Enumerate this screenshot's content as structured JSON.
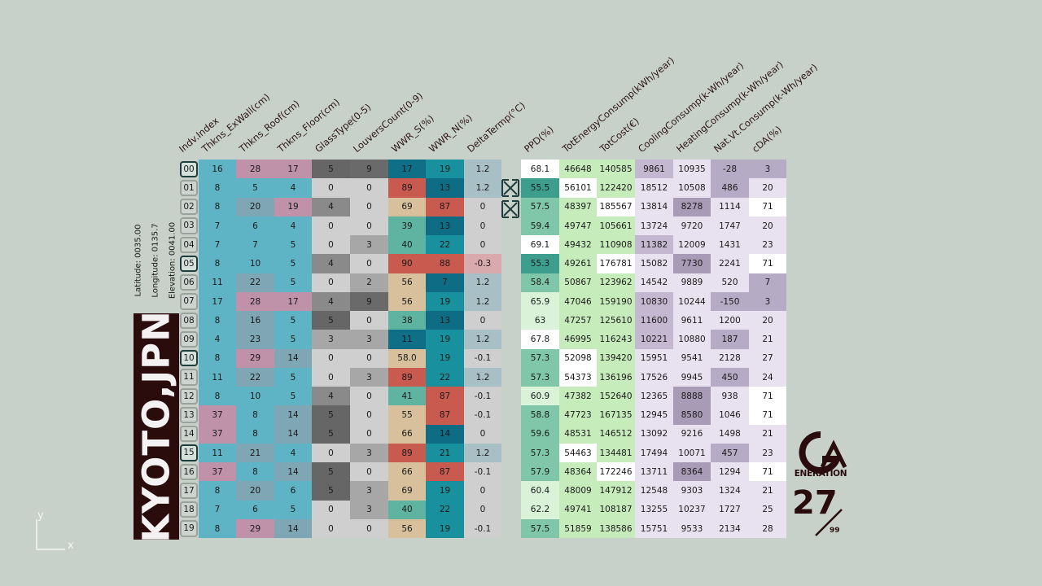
{
  "location": {
    "title": "KYOTO,JPN",
    "latitude": "Latitude:    0035.00",
    "longitude": "Longitude: 0135.7",
    "elevation": "Elevation: 0041.00"
  },
  "generation": {
    "logo_text": "ENERATION",
    "number": "27",
    "total": "99"
  },
  "axis": {
    "x": "x",
    "y": "y"
  },
  "colors": {
    "background": "#c8d1c9",
    "title_block": "#2a0c0c",
    "ExWall": [
      "#5eb3c4",
      "#c092a9"
    ],
    "Roof": [
      "#5eb3c4",
      "#7ea6b4",
      "#c092a9"
    ],
    "Glass": [
      "#cfcfcf",
      "#a7a7a7",
      "#8a8a8a",
      "#666666"
    ],
    "Louvers": [
      "#cfcfcf",
      "#a7a7a7",
      "#6a6a6a"
    ],
    "WWR_S": [
      "#0f6f87",
      "#5fb3a1",
      "#d8c09c",
      "#c85a4f"
    ],
    "WWR_N": [
      "#0e6d85",
      "#18909d",
      "#c85a4f"
    ],
    "Delta": [
      "#a7bfc5",
      "#cfcfcf",
      "#d8a9ad"
    ],
    "PPD": [
      "#3d9e8d",
      "#7fc7a8",
      "#d9f2d8",
      "#ffffff"
    ],
    "Energy": [
      "#c6ecbc",
      "#ffffff"
    ],
    "Cost": [
      "#c6ecbc",
      "#ffffff"
    ],
    "Cooling": [
      "#c4b8d0",
      "#e8e2f0"
    ],
    "Heating": [
      "#a79bb5",
      "#e8e2f0"
    ],
    "NatVt": [
      "#b6abc4",
      "#e8e2f0"
    ],
    "cDA": [
      "#b6abc4",
      "#ffffff"
    ]
  },
  "chart_data": {
    "type": "table",
    "columns": [
      "Indv.Index",
      "Thkns_ExWall(cm)",
      "Thkns_Roof(cm)",
      "Thkns_Floor(cm)",
      "GlassType(0-5)",
      "LouversCount(0-9)",
      "WWR_S(%)",
      "WWR_N(%)",
      "DeltaTermp(°C)",
      "PPD(%)",
      "TotEnergyConsump(kWh/year)",
      "TotCost(€)",
      "CoolingConsump(k-Wh/year)",
      "HeatingConsump(k-Wh/year)",
      "Nat.Vt.Consump(k-Wh/year)",
      "cDA(%)"
    ],
    "highlighted": [
      "00",
      "05",
      "10",
      "15"
    ],
    "rows": [
      [
        "00",
        "16",
        "28",
        "17",
        "5",
        "9",
        "17",
        "19",
        "1.2",
        "68.1",
        "46648",
        "140585",
        "9861",
        "10935",
        "-28",
        "3"
      ],
      [
        "01",
        "8",
        "5",
        "4",
        "0",
        "0",
        "89",
        "13",
        "1.2",
        "55.5",
        "56101",
        "122420",
        "18512",
        "10508",
        "486",
        "20"
      ],
      [
        "02",
        "8",
        "20",
        "19",
        "4",
        "0",
        "69",
        "87",
        "0",
        "57.5",
        "48397",
        "185567",
        "13814",
        "8278",
        "1114",
        "71"
      ],
      [
        "03",
        "7",
        "6",
        "4",
        "0",
        "0",
        "39",
        "13",
        "0",
        "59.4",
        "49747",
        "105661",
        "13724",
        "9720",
        "1747",
        "20"
      ],
      [
        "04",
        "7",
        "7",
        "5",
        "0",
        "3",
        "40",
        "22",
        "0",
        "69.1",
        "49432",
        "110908",
        "11382",
        "12009",
        "1431",
        "23"
      ],
      [
        "05",
        "8",
        "10",
        "5",
        "4",
        "0",
        "90",
        "88",
        "-0.3",
        "55.3",
        "49261",
        "176781",
        "15082",
        "7730",
        "2241",
        "71"
      ],
      [
        "06",
        "11",
        "22",
        "5",
        "0",
        "2",
        "56",
        "7",
        "1.2",
        "58.4",
        "50867",
        "123962",
        "14542",
        "9889",
        "520",
        "7"
      ],
      [
        "07",
        "17",
        "28",
        "17",
        "4",
        "9",
        "56",
        "19",
        "1.2",
        "65.9",
        "47046",
        "159190",
        "10830",
        "10244",
        "-150",
        "3"
      ],
      [
        "08",
        "8",
        "16",
        "5",
        "5",
        "0",
        "38",
        "13",
        "0",
        "63",
        "47257",
        "125610",
        "11600",
        "9611",
        "1200",
        "20"
      ],
      [
        "09",
        "4",
        "23",
        "5",
        "3",
        "3",
        "11",
        "19",
        "1.2",
        "67.8",
        "46995",
        "116243",
        "10221",
        "10880",
        "187",
        "21"
      ],
      [
        "10",
        "8",
        "29",
        "14",
        "0",
        "0",
        "58.0",
        "19",
        "-0.1",
        "57.3",
        "52098",
        "139420",
        "15951",
        "9541",
        "2128",
        "27"
      ],
      [
        "11",
        "11",
        "22",
        "5",
        "0",
        "3",
        "89",
        "22",
        "1.2",
        "57.3",
        "54373",
        "136196",
        "17526",
        "9945",
        "450",
        "24"
      ],
      [
        "12",
        "8",
        "10",
        "5",
        "4",
        "0",
        "41",
        "87",
        "-0.1",
        "60.9",
        "47382",
        "152640",
        "12365",
        "8888",
        "938",
        "71"
      ],
      [
        "13",
        "37",
        "8",
        "14",
        "5",
        "0",
        "55",
        "87",
        "-0.1",
        "58.8",
        "47723",
        "167135",
        "12945",
        "8580",
        "1046",
        "71"
      ],
      [
        "14",
        "37",
        "8",
        "14",
        "5",
        "0",
        "66",
        "14",
        "0",
        "59.6",
        "48531",
        "146512",
        "13092",
        "9216",
        "1498",
        "21"
      ],
      [
        "15",
        "11",
        "21",
        "4",
        "0",
        "3",
        "89",
        "21",
        "1.2",
        "57.3",
        "54463",
        "134481",
        "17494",
        "10071",
        "457",
        "23"
      ],
      [
        "16",
        "37",
        "8",
        "14",
        "5",
        "0",
        "66",
        "87",
        "-0.1",
        "57.9",
        "48364",
        "172246",
        "13711",
        "8364",
        "1294",
        "71"
      ],
      [
        "17",
        "8",
        "20",
        "6",
        "5",
        "3",
        "69",
        "19",
        "0",
        "60.4",
        "48009",
        "147912",
        "12548",
        "9303",
        "1324",
        "21"
      ],
      [
        "18",
        "7",
        "6",
        "5",
        "0",
        "3",
        "40",
        "22",
        "0",
        "62.2",
        "49741",
        "108187",
        "13255",
        "10237",
        "1727",
        "25"
      ],
      [
        "19",
        "8",
        "29",
        "14",
        "0",
        "0",
        "56",
        "19",
        "-0.1",
        "57.5",
        "51859",
        "138586",
        "15751",
        "9533",
        "2134",
        "28"
      ]
    ]
  }
}
